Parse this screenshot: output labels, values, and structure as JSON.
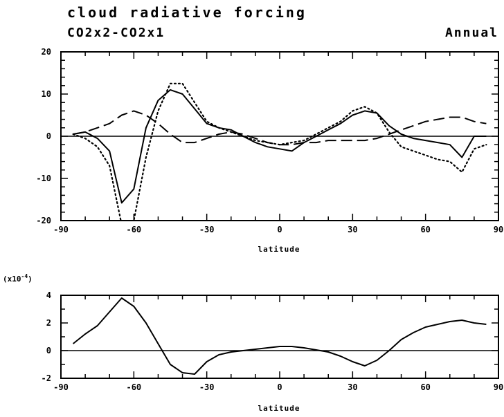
{
  "header": {
    "title": "cloud radiative forcing",
    "subtitle_left": "CO2x2-CO2x1",
    "subtitle_right": "Annual"
  },
  "chart_data": [
    {
      "type": "line",
      "xlabel": "latitude",
      "xlim": [
        -90,
        90
      ],
      "ylim": [
        -20,
        20
      ],
      "xticks": [
        "-90",
        "-60",
        "-30",
        "0",
        "30",
        "60",
        "90"
      ],
      "yticks": [
        "20",
        "10",
        "0",
        "-10",
        "-20"
      ],
      "series": [
        {
          "style": "solid",
          "x": [
            -85,
            -80,
            -75,
            -70,
            -65,
            -60,
            -55,
            -50,
            -45,
            -40,
            -35,
            -30,
            -25,
            -20,
            -15,
            -10,
            -5,
            0,
            5,
            10,
            15,
            20,
            25,
            30,
            35,
            40,
            45,
            50,
            55,
            60,
            65,
            70,
            75,
            80,
            85
          ],
          "y": [
            0.5,
            1,
            -0.5,
            -3.5,
            -15.8,
            -12.5,
            2,
            8.5,
            11,
            10,
            6.5,
            3,
            2,
            1.5,
            0,
            -1.5,
            -2.5,
            -3,
            -3.5,
            -1.5,
            0,
            1.5,
            3,
            5,
            6,
            5.5,
            2.5,
            0.5,
            -0.5,
            -1,
            -1.5,
            -2,
            -5,
            0,
            0
          ]
        },
        {
          "style": "dotted",
          "x": [
            -85,
            -80,
            -75,
            -70,
            -65,
            -60,
            -55,
            -50,
            -45,
            -40,
            -35,
            -30,
            -25,
            -20,
            -15,
            -10,
            -5,
            0,
            5,
            10,
            15,
            20,
            25,
            30,
            35,
            40,
            45,
            50,
            55,
            60,
            65,
            70,
            75,
            80,
            85
          ],
          "y": [
            0.5,
            -0.5,
            -2.5,
            -7,
            -21,
            -20,
            -5,
            6,
            12.5,
            12.5,
            8,
            3.5,
            2,
            1,
            0,
            -1,
            -1.5,
            -2,
            -1.5,
            -1,
            0.5,
            2,
            3.5,
            6,
            7,
            5.5,
            1,
            -2.5,
            -3.5,
            -4.5,
            -5.5,
            -6,
            -8.5,
            -3,
            -2
          ]
        },
        {
          "style": "dashed",
          "x": [
            -85,
            -80,
            -75,
            -70,
            -65,
            -60,
            -55,
            -50,
            -45,
            -40,
            -35,
            -30,
            -25,
            -20,
            -15,
            -10,
            -5,
            0,
            5,
            10,
            15,
            20,
            25,
            30,
            35,
            40,
            45,
            50,
            55,
            60,
            65,
            70,
            75,
            80,
            85
          ],
          "y": [
            0.5,
            1,
            2,
            3,
            5,
            6,
            5,
            3,
            0.5,
            -1.5,
            -1.5,
            -0.5,
            0.5,
            1,
            0.5,
            -0.5,
            -1.5,
            -2,
            -2,
            -1.5,
            -1.5,
            -1,
            -1,
            -1,
            -1,
            -0.5,
            0.5,
            1.5,
            2.5,
            3.5,
            4,
            4.5,
            4.5,
            3.5,
            3
          ]
        }
      ]
    },
    {
      "type": "line",
      "xlabel": "latitude",
      "ylabel": "(x10^-4)",
      "xlim": [
        -90,
        90
      ],
      "ylim": [
        -2,
        4
      ],
      "xticks": [
        "-90",
        "-60",
        "-30",
        "0",
        "30",
        "60",
        "90"
      ],
      "yticks": [
        "4",
        "2",
        "0",
        "-2"
      ],
      "series": [
        {
          "style": "solid",
          "x": [
            -85,
            -80,
            -75,
            -70,
            -65,
            -60,
            -55,
            -50,
            -45,
            -40,
            -35,
            -30,
            -25,
            -20,
            -15,
            -10,
            -5,
            0,
            5,
            10,
            15,
            20,
            25,
            30,
            35,
            40,
            45,
            50,
            55,
            60,
            65,
            70,
            75,
            80,
            85
          ],
          "y": [
            0.5,
            1.2,
            1.8,
            2.8,
            3.8,
            3.2,
            2,
            0.5,
            -1,
            -1.6,
            -1.7,
            -0.8,
            -0.3,
            -0.1,
            0,
            0.1,
            0.2,
            0.3,
            0.3,
            0.2,
            0.05,
            -0.1,
            -0.4,
            -0.8,
            -1.1,
            -0.7,
            0,
            0.8,
            1.3,
            1.7,
            1.9,
            2.1,
            2.2,
            2,
            1.9
          ]
        }
      ]
    }
  ]
}
